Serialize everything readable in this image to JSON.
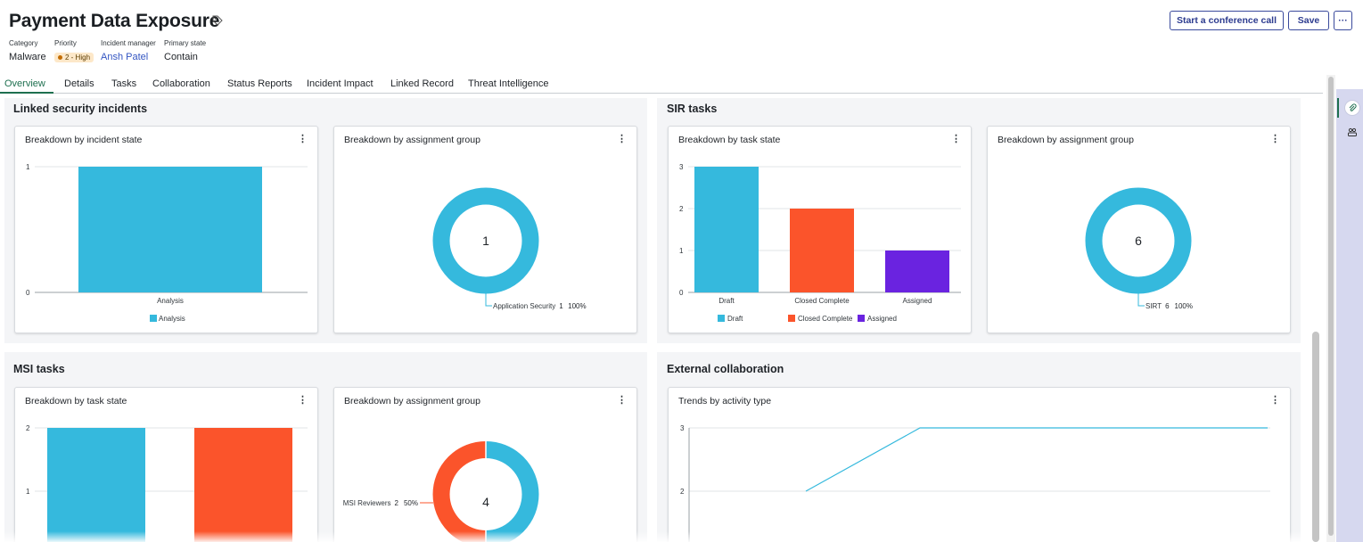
{
  "header": {
    "title": "Payment Data Exposure",
    "category_label": "Category",
    "category_value": "Malware",
    "priority_label": "Priority",
    "priority_value": "2 - High",
    "manager_label": "Incident manager",
    "manager_value": "Ansh Patel",
    "state_label": "Primary state",
    "state_value": "Contain",
    "conference_label": "Start a conference call",
    "save_label": "Save",
    "more_label": "···"
  },
  "tabs": [
    "Overview",
    "Details",
    "Tasks",
    "Collaboration",
    "Status Reports",
    "Incident Impact",
    "Linked Record",
    "Threat Intelligence"
  ],
  "colors": {
    "blue": "#35b9dd",
    "orange": "#fb542b",
    "purple": "#6a23e0",
    "accent_green": "#1e6f4f",
    "link_blue": "#3355c2"
  },
  "sections": {
    "linked": {
      "title": "Linked security incidents",
      "state_card": {
        "title": "Breakdown by incident state",
        "chart_data": {
          "type": "bar",
          "categories": [
            "Analysis"
          ],
          "values": [
            1
          ],
          "ylim": [
            0,
            1
          ],
          "yticks": [
            "1",
            "0"
          ],
          "legend": [
            "Analysis"
          ]
        }
      },
      "group_card": {
        "title": "Breakdown by assignment group",
        "chart_data": {
          "type": "pie",
          "center_label": "1",
          "slices": [
            {
              "name": "Application Security",
              "value": 1,
              "percent": "100%"
            }
          ]
        }
      }
    },
    "sir": {
      "title": "SIR tasks",
      "state_card": {
        "title": "Breakdown by task state",
        "chart_data": {
          "type": "bar",
          "categories": [
            "Draft",
            "Closed Complete",
            "Assigned"
          ],
          "values": [
            3,
            2,
            1
          ],
          "ylim": [
            0,
            3
          ],
          "yticks": [
            "3",
            "2",
            "1",
            "0"
          ],
          "legend": [
            "Draft",
            "Closed Complete",
            "Assigned"
          ]
        }
      },
      "group_card": {
        "title": "Breakdown by assignment group",
        "chart_data": {
          "type": "pie",
          "center_label": "6",
          "slices": [
            {
              "name": "SIRT",
              "value": 6,
              "percent": "100%"
            }
          ]
        }
      }
    },
    "msi": {
      "title": "MSI tasks",
      "state_card": {
        "title": "Breakdown by task state",
        "chart_data": {
          "type": "bar",
          "values": [
            2,
            2
          ],
          "ylim": [
            0,
            2
          ],
          "yticks": [
            "2",
            "1"
          ]
        }
      },
      "group_card": {
        "title": "Breakdown by assignment group",
        "chart_data": {
          "type": "pie",
          "center_label": "4",
          "slices": [
            {
              "name": "MSI Reviewers",
              "value": 2,
              "percent": "50%"
            }
          ]
        }
      }
    },
    "external": {
      "title": "External collaboration",
      "trend_card": {
        "title": "Trends by activity type",
        "chart_data": {
          "type": "line",
          "yticks": [
            "3",
            "2"
          ],
          "series": [
            {
              "values": [
                2,
                3,
                3,
                3,
                3,
                3
              ]
            }
          ]
        }
      }
    }
  }
}
